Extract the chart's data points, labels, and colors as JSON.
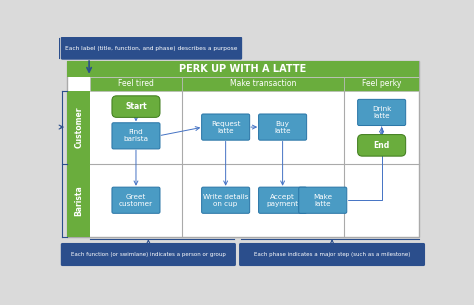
{
  "title": "PERK UP WITH A LATTE",
  "phases": [
    "Feel tired",
    "Make transaction",
    "Feel perky"
  ],
  "swimlanes": [
    "Customer",
    "Barista"
  ],
  "green": "#6AAD3D",
  "box_blue": "#4A9BC4",
  "dark_navy": "#2B4E8C",
  "arrow_col": "#4472C4",
  "white": "#FFFFFF",
  "phase_bg": "#F0F0F0",
  "grid_line": "#AAAAAA",
  "label_top": "Each label (title, function, and phase) describes a purpose",
  "label_bottom_left": "Each function (or swimlane) indicates a person or group",
  "label_bottom_right": "Each phase indicates a major step (such as a milestone)"
}
